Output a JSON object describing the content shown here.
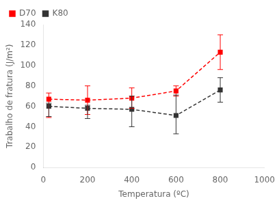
{
  "chart_data": {
    "type": "line",
    "xlabel": "Temperatura (ºC)",
    "ylabel": "Trabalho de fratura (J/m²)",
    "xlim": [
      0,
      1000
    ],
    "ylim": [
      0,
      140
    ],
    "xticks": [
      0,
      200,
      400,
      600,
      800,
      1000
    ],
    "yticks": [
      0,
      20,
      40,
      60,
      80,
      100,
      120,
      140
    ],
    "grid": false,
    "legend": "upper left",
    "series": [
      {
        "name": "D70",
        "color": "#ff0000",
        "marker": "square",
        "line_style": "dashed",
        "x": [
          25,
          200,
          400,
          600,
          800
        ],
        "values": [
          67,
          66,
          68,
          75,
          113
        ],
        "error_lower": [
          18,
          14,
          10,
          5,
          17
        ],
        "error_upper": [
          6,
          14,
          10,
          5,
          17
        ]
      },
      {
        "name": "K80",
        "color": "#333333",
        "marker": "square",
        "line_style": "dashed",
        "x": [
          25,
          200,
          400,
          600,
          800
        ],
        "values": [
          60,
          58,
          57,
          51,
          76
        ],
        "error_lower": [
          10,
          10,
          17,
          18,
          12
        ],
        "error_upper": [
          3,
          3,
          13,
          20,
          12
        ]
      }
    ]
  }
}
